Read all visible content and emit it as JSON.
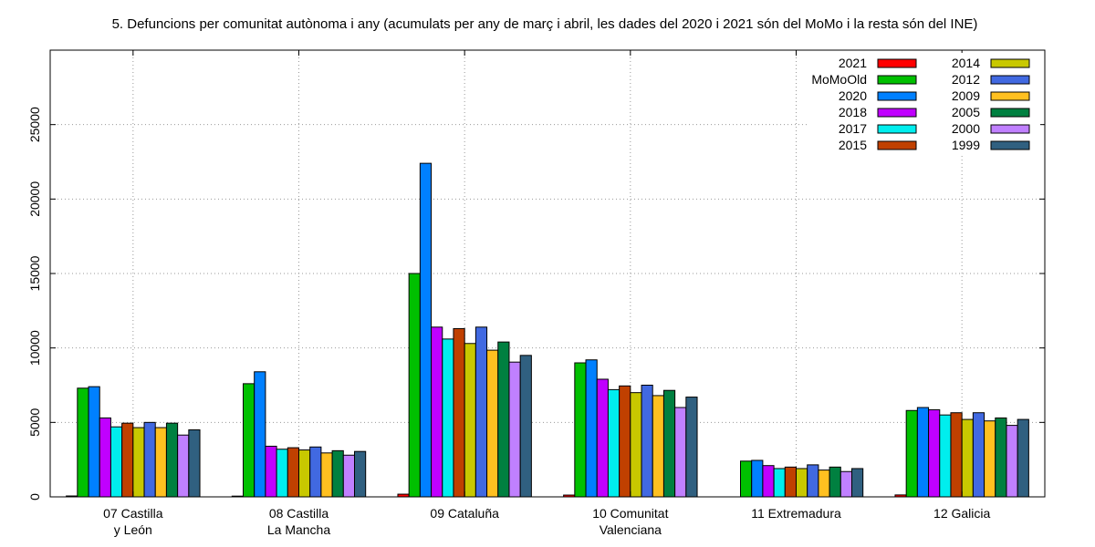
{
  "chart_data": {
    "type": "bar",
    "title": "5. Defuncions per comunitat autònoma i any (acumulats per any de març i abril, les dades del 2020 i 2021 són del MoMo i la resta són del INE)",
    "xlabel": "",
    "ylabel": "",
    "ylim": [
      0,
      30000
    ],
    "yticks": [
      0,
      5000,
      10000,
      15000,
      20000,
      25000
    ],
    "grid": true,
    "legend_position": "top-right",
    "categories": [
      [
        "07 Castilla",
        "y León"
      ],
      [
        "08 Castilla",
        "La Mancha"
      ],
      [
        "09 Cataluña"
      ],
      [
        "10 Comunitat",
        "Valenciana"
      ],
      [
        "11 Extremadura"
      ],
      [
        "12 Galicia"
      ]
    ],
    "series": [
      {
        "name": "2021",
        "color": "#ff0000",
        "values": [
          60,
          50,
          180,
          120,
          0,
          130
        ]
      },
      {
        "name": "MoMoOld",
        "color": "#00c000",
        "values": [
          7300,
          7600,
          15000,
          9000,
          2400,
          5800
        ]
      },
      {
        "name": "2020",
        "color": "#0080ff",
        "values": [
          7400,
          8400,
          22400,
          9200,
          2450,
          6000
        ]
      },
      {
        "name": "2018",
        "color": "#c000ff",
        "values": [
          5300,
          3400,
          11400,
          7900,
          2100,
          5850
        ]
      },
      {
        "name": "2017",
        "color": "#00eeee",
        "values": [
          4700,
          3200,
          10600,
          7200,
          1900,
          5500
        ]
      },
      {
        "name": "2015",
        "color": "#c04000",
        "values": [
          4950,
          3300,
          11300,
          7450,
          2000,
          5650
        ]
      },
      {
        "name": "2014",
        "color": "#c8c800",
        "values": [
          4650,
          3150,
          10300,
          7000,
          1900,
          5200
        ]
      },
      {
        "name": "2012",
        "color": "#4169e1",
        "values": [
          5000,
          3350,
          11400,
          7500,
          2150,
          5650
        ]
      },
      {
        "name": "2009",
        "color": "#ffc020",
        "values": [
          4650,
          2950,
          9850,
          6800,
          1800,
          5100
        ]
      },
      {
        "name": "2005",
        "color": "#008040",
        "values": [
          4950,
          3100,
          10400,
          7150,
          2000,
          5300
        ]
      },
      {
        "name": "2000",
        "color": "#c080ff",
        "values": [
          4150,
          2800,
          9050,
          6000,
          1700,
          4800
        ]
      },
      {
        "name": "1999",
        "color": "#306080",
        "values": [
          4500,
          3050,
          9500,
          6700,
          1900,
          5200
        ]
      }
    ]
  }
}
